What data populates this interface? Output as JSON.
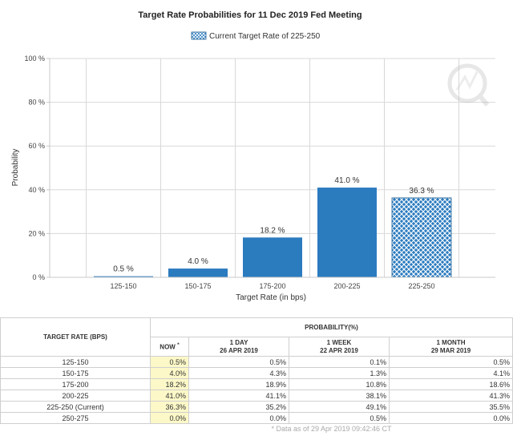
{
  "chart_data": {
    "type": "bar",
    "title": "Target Rate Probabilities for 11 Dec 2019 Fed Meeting",
    "legend": [
      "Current Target Rate of 225-250"
    ],
    "legend_position": "top-center",
    "categories": [
      "125-150",
      "150-175",
      "175-200",
      "200-225",
      "225-250"
    ],
    "values": [
      0.5,
      4.0,
      18.2,
      41.0,
      36.3
    ],
    "value_labels": [
      "0.5 %",
      "4.0 %",
      "18.2 %",
      "41.0 %",
      "36.3 %"
    ],
    "highlight_category": "225-250",
    "xlabel": "Target Rate (in bps)",
    "ylabel": "Probability",
    "ylim": [
      0,
      100
    ],
    "yticks": [
      0,
      20,
      40,
      60,
      80,
      100
    ],
    "ytick_labels": [
      "0 %",
      "20 %",
      "40 %",
      "60 %",
      "80 %",
      "100 %"
    ],
    "grid": true
  },
  "colors": {
    "bar": "#2b7bbf",
    "highlight_bar": "#2b7bbf",
    "grid": "#d8d8d8",
    "now_bg": "#fcf8c8"
  },
  "table": {
    "rate_header": "TARGET RATE (BPS)",
    "probability_header": "PROBABILITY(%)",
    "columns": [
      {
        "label": "NOW",
        "marker": "*",
        "date": ""
      },
      {
        "label": "1 DAY",
        "date": "26 APR 2019"
      },
      {
        "label": "1 WEEK",
        "date": "22 APR 2019"
      },
      {
        "label": "1 MONTH",
        "date": "29 MAR 2019"
      }
    ],
    "rows": [
      {
        "rate": "125-150",
        "now": "0.5%",
        "day": "0.5%",
        "week": "0.1%",
        "month": "0.5%"
      },
      {
        "rate": "150-175",
        "now": "4.0%",
        "day": "4.3%",
        "week": "1.3%",
        "month": "4.1%"
      },
      {
        "rate": "175-200",
        "now": "18.2%",
        "day": "18.9%",
        "week": "10.8%",
        "month": "18.6%"
      },
      {
        "rate": "200-225",
        "now": "41.0%",
        "day": "41.1%",
        "week": "38.1%",
        "month": "41.3%"
      },
      {
        "rate": "225-250 (Current)",
        "now": "36.3%",
        "day": "35.2%",
        "week": "49.1%",
        "month": "35.5%"
      },
      {
        "rate": "250-275",
        "now": "0.0%",
        "day": "0.0%",
        "week": "0.5%",
        "month": "0.0%"
      }
    ],
    "footnote": "* Data as of 29 Apr 2019 09:42:46 CT"
  }
}
